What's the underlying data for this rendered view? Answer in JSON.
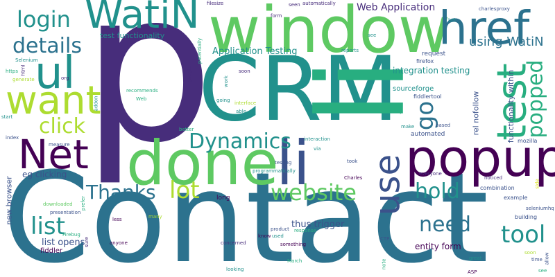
{
  "background": "#ffffff",
  "palette": {
    "dark_purple": "#440154",
    "indigo": "#472d7b",
    "blue": "#3b528b",
    "steel": "#2c728e",
    "teal": "#21918c",
    "green_teal": "#28ae80",
    "green": "#5ec962",
    "lime": "#addc30",
    "yellow": "#dde318"
  },
  "words": [
    {
      "text": "p",
      "color": "#472d7b"
    },
    {
      "text": "Contact",
      "color": "#2c728e"
    },
    {
      "text": "CRM",
      "color": "#21918c"
    },
    {
      "text": "li",
      "color": "#28ae80"
    },
    {
      "text": "window",
      "color": "#5ec962"
    },
    {
      "text": "done",
      "color": "#5ec962"
    },
    {
      "text": "li",
      "color": "#3b528b"
    },
    {
      "text": "popup",
      "color": "#440154"
    },
    {
      "text": "href",
      "color": "#2c728e"
    },
    {
      "text": "WatiN",
      "color": "#21918c"
    },
    {
      "text": "ul",
      "color": "#21918c"
    },
    {
      "text": "want",
      "color": "#addc30"
    },
    {
      "text": "Net",
      "color": "#440154"
    },
    {
      "text": "test",
      "color": "#28ae80"
    },
    {
      "text": "use",
      "color": "#3b528b"
    },
    {
      "text": "login",
      "color": "#21918c"
    },
    {
      "text": "details",
      "color": "#2c728e"
    },
    {
      "text": "click",
      "color": "#addc30"
    },
    {
      "text": "Dynamics",
      "color": "#21918c"
    },
    {
      "text": "lot",
      "color": "#addc30"
    },
    {
      "text": "Thanks",
      "color": "#2c728e"
    },
    {
      "text": "website",
      "color": "#5ec962"
    },
    {
      "text": "list",
      "color": "#21918c"
    },
    {
      "text": "need",
      "color": "#2c728e"
    },
    {
      "text": "tool",
      "color": "#21918c"
    },
    {
      "text": "hold",
      "color": "#21918c"
    },
    {
      "text": "go",
      "color": "#2c728e"
    },
    {
      "text": "popped",
      "color": "#28ae80"
    },
    {
      "text": "using WatiN",
      "color": "#2c728e"
    },
    {
      "text": "Web Application",
      "color": "#472d7b"
    },
    {
      "text": "Application Testing",
      "color": "#21918c"
    },
    {
      "text": "integration testing",
      "color": "#21918c"
    },
    {
      "text": "thus trigger",
      "color": "#3b528b"
    },
    {
      "text": "list opens",
      "color": "#3b528b"
    },
    {
      "text": "entity form",
      "color": "#440154"
    },
    {
      "text": "test functionality",
      "color": "#21918c"
    },
    {
      "text": "eg clicking",
      "color": "#3b528b"
    },
    {
      "text": "new browser",
      "color": "#3b528b"
    },
    {
      "text": "functionality within",
      "color": "#3b528b"
    },
    {
      "text": "rel nofollow",
      "color": "#3b528b"
    },
    {
      "text": "sourceforge",
      "color": "#21918c"
    },
    {
      "text": "fiddler",
      "color": "#440154"
    },
    {
      "text": "request",
      "color": "#3b528b"
    },
    {
      "text": "firefox",
      "color": "#3b528b"
    },
    {
      "text": "fiddlertool",
      "color": "#3b528b"
    },
    {
      "text": "automated",
      "color": "#3b528b"
    },
    {
      "text": "long",
      "color": "#440154"
    },
    {
      "text": "combination",
      "color": "#3b528b"
    },
    {
      "text": "example",
      "color": "#3b528b"
    },
    {
      "text": "building",
      "color": "#3b528b"
    },
    {
      "text": "seleniumhq",
      "color": "#3b528b"
    },
    {
      "text": "mozilla",
      "color": "#3b528b"
    },
    {
      "text": "charlesproxy",
      "color": "#3b528b"
    },
    {
      "text": "filesize",
      "color": "#472d7b"
    },
    {
      "text": "automatically",
      "color": "#472d7b"
    },
    {
      "text": "seen",
      "color": "#472d7b"
    },
    {
      "text": "form",
      "color": "#472d7b"
    },
    {
      "text": "Selenium",
      "color": "#21918c"
    },
    {
      "text": "https",
      "color": "#28ae80"
    },
    {
      "text": "html",
      "color": "#472d7b"
    },
    {
      "text": "org",
      "color": "#472d7b"
    },
    {
      "text": "generate",
      "color": "#addc30"
    },
    {
      "text": "start",
      "color": "#21918c"
    },
    {
      "text": "index",
      "color": "#3b528b"
    },
    {
      "text": "measure",
      "color": "#3b528b"
    },
    {
      "text": "recommends",
      "color": "#28ae80"
    },
    {
      "text": "Web",
      "color": "#28ae80"
    },
    {
      "text": "addon",
      "color": "#21918c"
    },
    {
      "text": "google",
      "color": "#472d7b"
    },
    {
      "text": "potentially",
      "color": "#28ae80"
    },
    {
      "text": "work",
      "color": "#21918c"
    },
    {
      "text": "soon",
      "color": "#472d7b"
    },
    {
      "text": "going",
      "color": "#21918c"
    },
    {
      "text": "interface",
      "color": "#addc30"
    },
    {
      "text": "able",
      "color": "#21918c"
    },
    {
      "text": "better",
      "color": "#28ae80"
    },
    {
      "text": "interaction",
      "color": "#21918c"
    },
    {
      "text": "via",
      "color": "#21918c"
    },
    {
      "text": "testing",
      "color": "#3b528b"
    },
    {
      "text": "programmatically",
      "color": "#21918c"
    },
    {
      "text": "took",
      "color": "#3b528b"
    },
    {
      "text": "Charles",
      "color": "#440154"
    },
    {
      "text": "everyone",
      "color": "#472d7b"
    },
    {
      "text": "noticed",
      "color": "#472d7b"
    },
    {
      "text": "say",
      "color": "#28ae80"
    },
    {
      "text": "make",
      "color": "#21918c"
    },
    {
      "text": "based",
      "color": "#3b528b"
    },
    {
      "text": "us",
      "color": "#21918c"
    },
    {
      "text": "reports",
      "color": "#21918c"
    },
    {
      "text": "Let",
      "color": "#21918c"
    },
    {
      "text": "downloaded",
      "color": "#5ec962"
    },
    {
      "text": "prefer",
      "color": "#28ae80"
    },
    {
      "text": "presentation",
      "color": "#3b528b"
    },
    {
      "text": "Firebug",
      "color": "#28ae80"
    },
    {
      "text": "sure",
      "color": "#472d7b"
    },
    {
      "text": "less",
      "color": "#440154"
    },
    {
      "text": "many",
      "color": "#addc30"
    },
    {
      "text": "anyone",
      "color": "#440154"
    },
    {
      "text": "concerned",
      "color": "#472d7b"
    },
    {
      "text": "know",
      "color": "#440154"
    },
    {
      "text": "used",
      "color": "#21918c"
    },
    {
      "text": "something",
      "color": "#440154"
    },
    {
      "text": "product",
      "color": "#3b528b"
    },
    {
      "text": "response",
      "color": "#28ae80"
    },
    {
      "text": "CTP",
      "color": "#3b528b"
    },
    {
      "text": "note",
      "color": "#28ae80"
    },
    {
      "text": "March",
      "color": "#28ae80"
    },
    {
      "text": "looking",
      "color": "#21918c"
    },
    {
      "text": "great",
      "color": "#21918c"
    },
    {
      "text": "ASP",
      "color": "#440154"
    },
    {
      "text": "time",
      "color": "#3b528b"
    },
    {
      "text": "soon",
      "color": "#addc30"
    },
    {
      "text": "allow",
      "color": "#3b528b"
    },
    {
      "text": "see",
      "color": "#28ae80"
    },
    {
      "text": "side",
      "color": "#dde318"
    },
    {
      "text": "see",
      "color": "#21918c"
    }
  ]
}
